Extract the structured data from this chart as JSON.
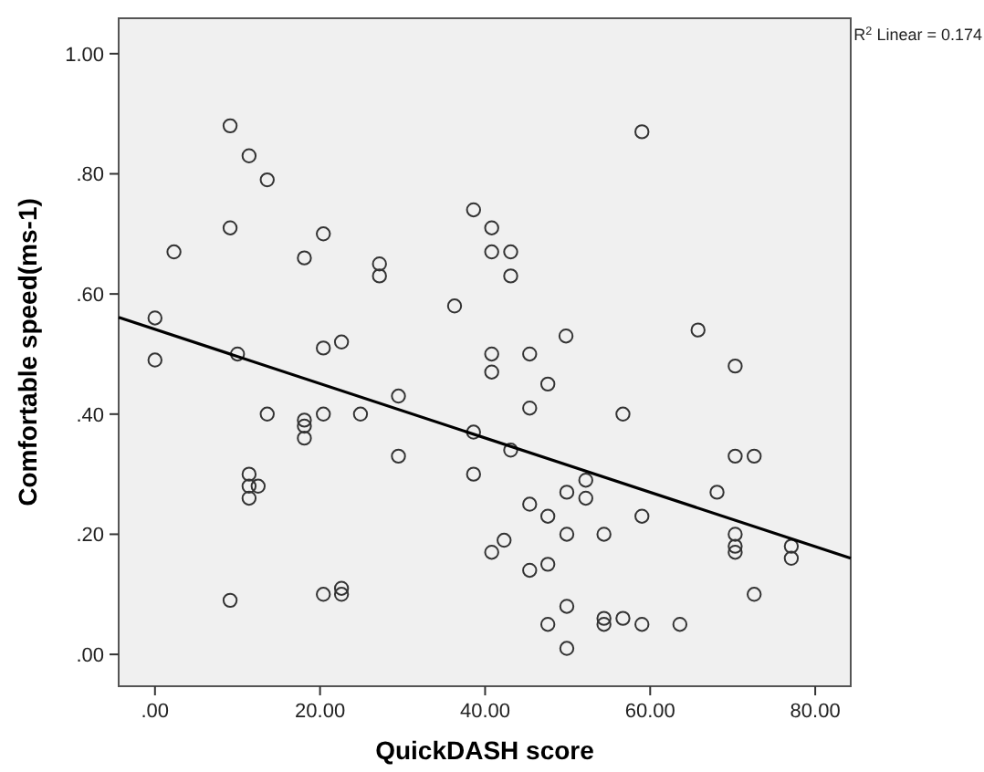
{
  "chart_data": {
    "type": "scatter",
    "xlabel": "QuickDASH score",
    "ylabel": "Comfortable speed(ms-1)",
    "annotations": [
      "R$^{2}$ Linear = 0.174"
    ],
    "xlim": [
      -4.4,
      84.3
    ],
    "ylim": [
      -0.053,
      1.059
    ],
    "xticks": [
      {
        "value": 0,
        "label": ".00"
      },
      {
        "value": 20,
        "label": "20.00"
      },
      {
        "value": 40,
        "label": "40.00"
      },
      {
        "value": 60,
        "label": "60.00"
      },
      {
        "value": 80,
        "label": "80.00"
      }
    ],
    "yticks": [
      {
        "value": 0,
        "label": ".00"
      },
      {
        "value": 0.2,
        "label": ".20"
      },
      {
        "value": 0.4,
        "label": ".40"
      },
      {
        "value": 0.6,
        "label": ".60"
      },
      {
        "value": 0.8,
        "label": ".80"
      },
      {
        "value": 1,
        "label": "1.00"
      }
    ],
    "grid": false,
    "marker": "circle",
    "series": [
      {
        "color": "#333333",
        "x": [
          9.1,
          11.4,
          13.6,
          9.1,
          2.3,
          20.4,
          18.1,
          27.2,
          27.2,
          38.6,
          40.8,
          40.8,
          43.1,
          43.1,
          0,
          0,
          10,
          20.4,
          22.6,
          36.3,
          40.8,
          59,
          49.8,
          65.8,
          45.4,
          70.3,
          40.8,
          29.5,
          13.6,
          18.1,
          18.1,
          18.1,
          20.4,
          24.9,
          38.6,
          43.1,
          29.5,
          38.6,
          11.4,
          11.4,
          12.5,
          11.4,
          42.3,
          40.8,
          9.1,
          20.4,
          22.6,
          22.6,
          47.6,
          45.4,
          56.7,
          70.3,
          72.6,
          68.1,
          49.9,
          52.2,
          52.2,
          45.4,
          47.6,
          49.9,
          54.4,
          59,
          70.3,
          70.3,
          70.3,
          77.1,
          77.1,
          45.4,
          47.6,
          72.6,
          49.9,
          47.6,
          54.4,
          54.4,
          56.7,
          59,
          63.6,
          49.9
        ],
        "values": [
          0.88,
          0.83,
          0.79,
          0.71,
          0.67,
          0.7,
          0.66,
          0.65,
          0.63,
          0.74,
          0.71,
          0.67,
          0.67,
          0.63,
          0.56,
          0.49,
          0.5,
          0.51,
          0.52,
          0.58,
          0.5,
          0.87,
          0.53,
          0.54,
          0.5,
          0.48,
          0.47,
          0.43,
          0.4,
          0.39,
          0.38,
          0.36,
          0.4,
          0.4,
          0.37,
          0.34,
          0.33,
          0.3,
          0.3,
          0.28,
          0.28,
          0.26,
          0.19,
          0.17,
          0.09,
          0.1,
          0.11,
          0.1,
          0.45,
          0.41,
          0.4,
          0.33,
          0.33,
          0.27,
          0.27,
          0.29,
          0.26,
          0.25,
          0.23,
          0.2,
          0.2,
          0.23,
          0.2,
          0.18,
          0.17,
          0.18,
          0.16,
          0.14,
          0.15,
          0.1,
          0.08,
          0.05,
          0.06,
          0.05,
          0.06,
          0.05,
          0.05,
          0.01
        ]
      },
      {
        "type": "line",
        "color": "#000000",
        "marker": "none",
        "line_style": "solid",
        "x": [
          -4.4,
          84.3
        ],
        "values": [
          0.561,
          0.16
        ]
      }
    ]
  }
}
